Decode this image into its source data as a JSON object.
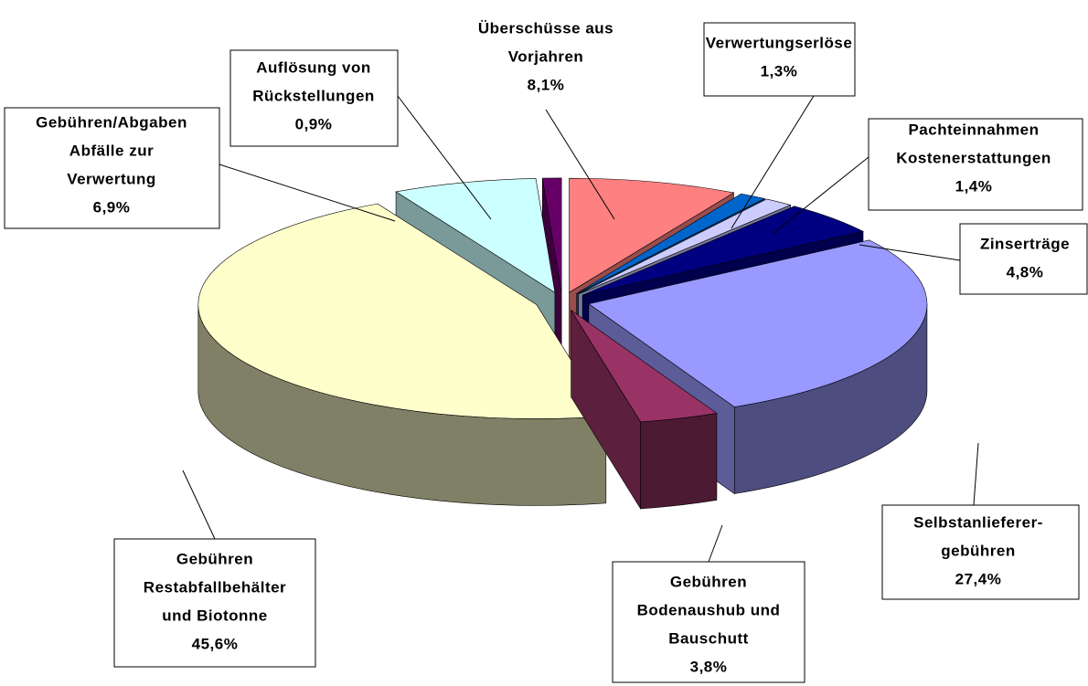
{
  "chart_data": {
    "type": "pie",
    "categories": [
      [
        "Überschüsse aus",
        "Vorjahren"
      ],
      [
        "Verwertungserlöse"
      ],
      [
        "Pachteinnahmen",
        "Kostenerstattungen"
      ],
      [
        "Zinserträge"
      ],
      [
        "Selbstanlieferer-",
        "gebühren"
      ],
      [
        "Gebühren",
        "Bodenaushub und",
        "Bauschutt"
      ],
      [
        "Gebühren",
        "Restabfallbehälter",
        "und Biotonne"
      ],
      [
        "Gebühren/Abgaben",
        "Abfälle zur",
        "Verwertung"
      ],
      [
        "Auflösung von",
        "Rückstellungen"
      ]
    ],
    "values": [
      8.1,
      1.3,
      1.4,
      4.8,
      27.4,
      3.8,
      45.6,
      6.9,
      0.9
    ],
    "value_labels": [
      "8,1%",
      "1,3%",
      "1,4%",
      "4,8%",
      "27,4%",
      "3,8%",
      "45,6%",
      "6,9%",
      "0,9%"
    ],
    "colors": [
      "#ff8080",
      "#0066cc",
      "#ccccff",
      "#000080",
      "#9999ff",
      "#993366",
      "#ffffcc",
      "#ccffff",
      "#660066"
    ]
  }
}
